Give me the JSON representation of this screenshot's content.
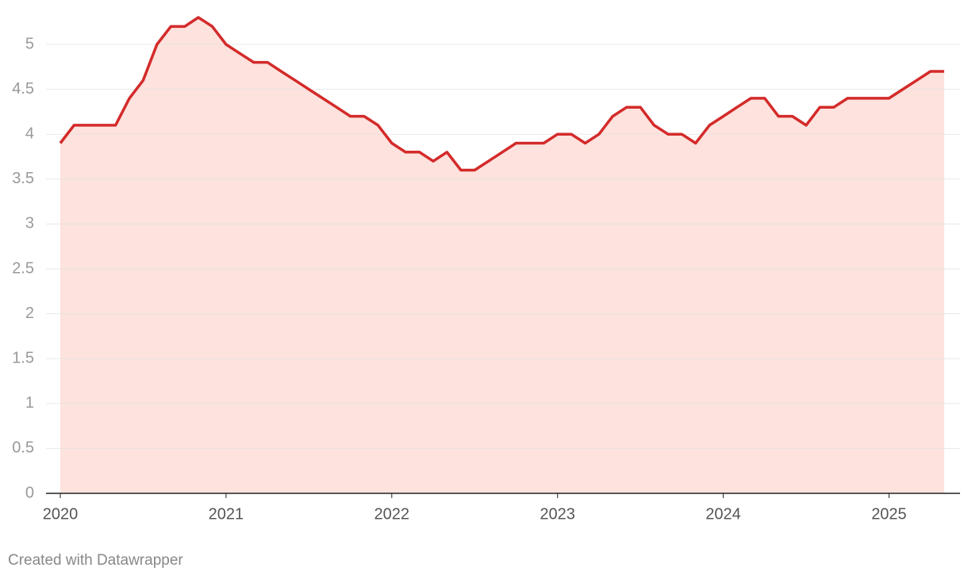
{
  "chart_data": {
    "type": "area",
    "x": [
      2020,
      2020.083,
      2020.167,
      2020.25,
      2020.333,
      2020.417,
      2020.5,
      2020.583,
      2020.667,
      2020.75,
      2020.833,
      2020.917,
      2021,
      2021.083,
      2021.167,
      2021.25,
      2021.333,
      2021.417,
      2021.5,
      2021.583,
      2021.667,
      2021.75,
      2021.833,
      2021.917,
      2022,
      2022.083,
      2022.167,
      2022.25,
      2022.333,
      2022.417,
      2022.5,
      2022.583,
      2022.667,
      2022.75,
      2022.833,
      2022.917,
      2023,
      2023.083,
      2023.167,
      2023.25,
      2023.333,
      2023.417,
      2023.5,
      2023.583,
      2023.667,
      2023.75,
      2023.833,
      2023.917,
      2024,
      2024.083,
      2024.167,
      2024.25,
      2024.333,
      2024.417,
      2024.5,
      2024.583,
      2024.667,
      2024.75,
      2024.833,
      2024.917,
      2025,
      2025.083,
      2025.167,
      2025.25,
      2025.333
    ],
    "values": [
      3.9,
      4.1,
      4.1,
      4.1,
      4.1,
      4.4,
      4.6,
      5.0,
      5.2,
      5.2,
      5.3,
      5.2,
      5.0,
      4.9,
      4.8,
      4.8,
      4.7,
      4.6,
      4.5,
      4.4,
      4.3,
      4.2,
      4.2,
      4.1,
      3.9,
      3.8,
      3.8,
      3.7,
      3.8,
      3.6,
      3.6,
      3.7,
      3.8,
      3.9,
      3.9,
      3.9,
      4.0,
      4.0,
      3.9,
      4.0,
      4.2,
      4.3,
      4.3,
      4.1,
      4.0,
      4.0,
      3.9,
      4.1,
      4.2,
      4.3,
      4.4,
      4.4,
      4.2,
      4.2,
      4.1,
      4.3,
      4.3,
      4.4,
      4.4,
      4.4,
      4.4,
      4.5,
      4.6,
      4.7,
      4.7
    ],
    "color": "#d42a2a",
    "area_color": "#fde2dd",
    "xlim": [
      2020,
      2025.333
    ],
    "xticks": [
      2020,
      2021,
      2022,
      2023,
      2024,
      2025
    ],
    "ylim": [
      0,
      5.3
    ],
    "yticks": [
      0,
      0.5,
      1,
      1.5,
      2,
      2.5,
      3,
      3.5,
      4,
      4.5,
      5
    ],
    "grid": true,
    "footer": "Created with Datawrapper"
  }
}
